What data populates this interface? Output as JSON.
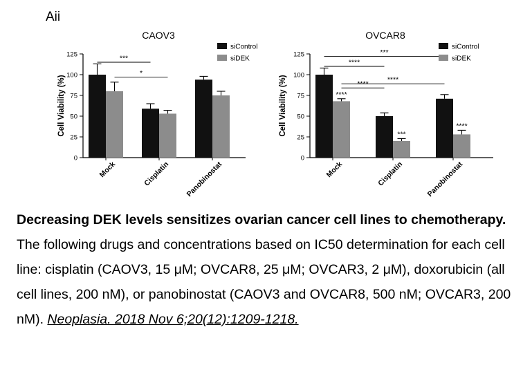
{
  "figure": {
    "panel_label": "Aii"
  },
  "chart_data": [
    {
      "type": "bar",
      "title": "CAOV3",
      "xlabel": "",
      "ylabel": "Cell Viability (%)",
      "ylim": [
        0,
        125
      ],
      "yticks": [
        "0",
        "25",
        "50",
        "75",
        "100",
        "125"
      ],
      "categories": [
        "Mock",
        "Cisplatin",
        "Panobinostat"
      ],
      "series": [
        {
          "name": "siControl",
          "color": "#111111",
          "values": [
            100,
            59,
            94
          ],
          "errors": [
            13,
            6,
            4
          ]
        },
        {
          "name": "siDEK",
          "color": "#8c8c8c",
          "values": [
            80,
            53,
            75
          ],
          "errors": [
            11,
            4,
            5
          ]
        }
      ],
      "bar_labels": [],
      "comparisons": [
        {
          "label": "***",
          "from": [
            0,
            0
          ],
          "to": [
            1,
            0
          ],
          "y": 115
        },
        {
          "label": "*",
          "from": [
            0,
            1
          ],
          "to": [
            1,
            1
          ],
          "y": 97
        }
      ],
      "legend": "top-right",
      "grid": false
    },
    {
      "type": "bar",
      "title": "OVCAR8",
      "xlabel": "",
      "ylabel": "Cell Viability (%)",
      "ylim": [
        0,
        125
      ],
      "yticks": [
        "0",
        "25",
        "50",
        "75",
        "100",
        "125"
      ],
      "categories": [
        "Mock",
        "Cisplatin",
        "Panobinostat"
      ],
      "series": [
        {
          "name": "siControl",
          "color": "#111111",
          "values": [
            100,
            50,
            71
          ],
          "errors": [
            8,
            4,
            5
          ]
        },
        {
          "name": "siDEK",
          "color": "#8c8c8c",
          "values": [
            68,
            20,
            28
          ],
          "errors": [
            3,
            3,
            5
          ]
        }
      ],
      "bar_labels": [
        {
          "series": 1,
          "category": 0,
          "label": "****"
        },
        {
          "series": 1,
          "category": 1,
          "label": "***"
        },
        {
          "series": 1,
          "category": 2,
          "label": "****"
        }
      ],
      "comparisons": [
        {
          "label": "***",
          "from": [
            0,
            0
          ],
          "to": [
            2,
            0
          ],
          "y": 122
        },
        {
          "label": "****",
          "from": [
            0,
            0
          ],
          "to": [
            1,
            0
          ],
          "y": 110
        },
        {
          "label": "****",
          "from": [
            0,
            1
          ],
          "to": [
            2,
            0
          ],
          "y": 89
        },
        {
          "label": "****",
          "from": [
            0,
            1
          ],
          "to": [
            1,
            0
          ],
          "y": 84
        }
      ],
      "legend": "top-right",
      "grid": false
    }
  ],
  "caption": {
    "title": "Decreasing DEK levels sensitizes ovarian cancer cell lines to chemotherapy.",
    "body": "The following drugs and concentrations based on IC50 determination for each cell line: cisplatin (CAOV3, 15 μM; OVCAR8, 25 μM; OVCAR3, 2 μM), doxorubicin (all cell lines, 200 nM), or panobinostat (CAOV3 and OVCAR8, 500 nM; OVCAR3, 200 nM).",
    "citation": "Neoplasia. 2018 Nov 6;20(12):1209-1218."
  }
}
